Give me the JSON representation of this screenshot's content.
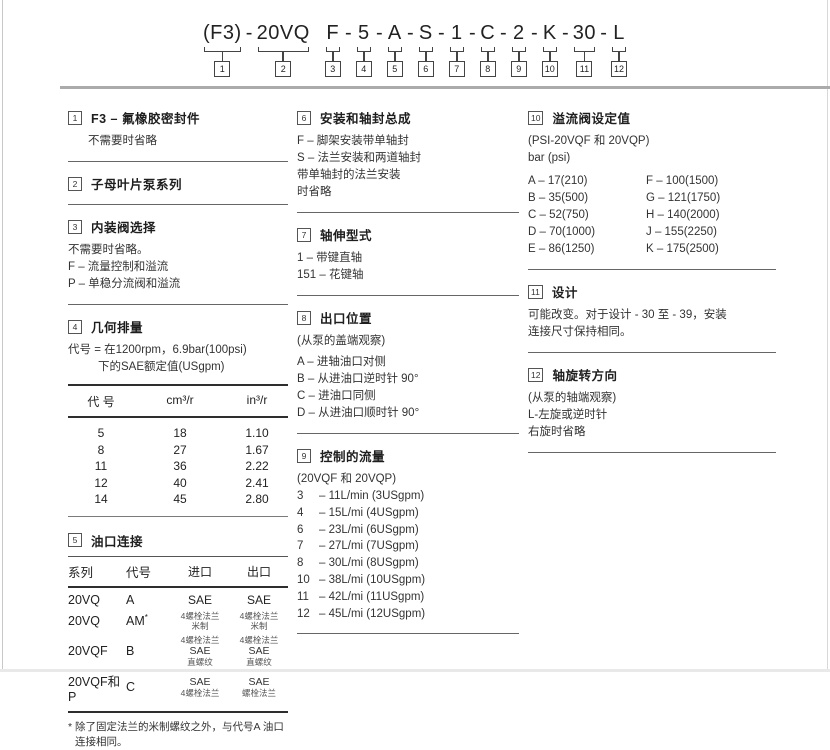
{
  "colors": {
    "text": "#2b2b2b",
    "rule_gray": "#ababab",
    "line_dark": "#444444"
  },
  "model_code": {
    "segments": [
      {
        "sep": "",
        "text": "(F3)",
        "num": "1"
      },
      {
        "sep": "-",
        "text": "20VQ",
        "num": "2"
      },
      {
        "sep": "",
        "text": "F",
        "num": "3"
      },
      {
        "sep": "-",
        "text": "5",
        "num": "4"
      },
      {
        "sep": "-",
        "text": "A",
        "num": "5"
      },
      {
        "sep": "-",
        "text": "S",
        "num": "6"
      },
      {
        "sep": "-",
        "text": "1",
        "num": "7"
      },
      {
        "sep": "-",
        "text": "C",
        "num": "8"
      },
      {
        "sep": "-",
        "text": "2",
        "num": "9"
      },
      {
        "sep": "-",
        "text": "K",
        "num": "10"
      },
      {
        "sep": "-",
        "text": "30",
        "num": "11"
      },
      {
        "sep": "-",
        "text": "L",
        "num": "12"
      }
    ]
  },
  "s1": {
    "num": "1",
    "title": "F3 – 氟橡胶密封件",
    "lines": [
      "不需要时省略"
    ]
  },
  "s2": {
    "num": "2",
    "title": "子母叶片泵系列"
  },
  "s3": {
    "num": "3",
    "title": "内装阀选择",
    "lines": [
      "不需要时省略。",
      "F – 流量控制和溢流",
      "P – 单稳分流阀和溢流"
    ]
  },
  "s4": {
    "num": "4",
    "title": "几何排量",
    "lines": [
      "代号 = 在1200rpm，6.9bar(100psi)",
      "下的SAE额定值(USgpm)"
    ],
    "table": {
      "headers": [
        "代 号",
        "cm³/r",
        "in³/r"
      ],
      "rows": [
        [
          "5",
          "18",
          "1.10"
        ],
        [
          "8",
          "27",
          "1.67"
        ],
        [
          "11",
          "36",
          "2.22"
        ],
        [
          "12",
          "40",
          "2.41"
        ],
        [
          "14",
          "45",
          "2.80"
        ]
      ]
    }
  },
  "s5": {
    "num": "5",
    "title": "油口连接",
    "table": {
      "headers": [
        "系列",
        "代号",
        "进口",
        "出口"
      ],
      "rows": [
        {
          "series": "20VQ",
          "code": "A",
          "code_sup": "",
          "inlet": [
            "SAE"
          ],
          "outlet": [
            "SAE"
          ]
        },
        {
          "series": "20VQ",
          "code": "AM",
          "code_sup": "*",
          "inlet": [
            "4螺栓法兰",
            "米制"
          ],
          "outlet": [
            "4螺栓法兰",
            "米制"
          ]
        },
        {
          "series": "20VQF",
          "code": "B",
          "code_sup": "",
          "inlet": [
            "4螺栓法兰",
            "SAE",
            "直螺纹"
          ],
          "outlet": [
            "4螺栓法兰",
            "SAE",
            "直螺纹"
          ]
        },
        {
          "series": "20VQF和P",
          "code": "C",
          "code_sup": "",
          "inlet": [
            "SAE",
            "4螺栓法兰"
          ],
          "outlet": [
            "SAE",
            "螺栓法兰"
          ]
        }
      ]
    },
    "footnote": [
      "* 除了固定法兰的米制螺纹之外，与代号A 油口",
      "连接相同。"
    ]
  },
  "s6": {
    "num": "6",
    "title": "安装和轴封总成",
    "lines": [
      "F – 脚架安装带单轴封",
      "S – 法兰安装和两道轴封",
      "带单轴封的法兰安装",
      "时省略"
    ]
  },
  "s7": {
    "num": "7",
    "title": "轴伸型式",
    "lines": [
      "1 – 带键直轴",
      "151 – 花键轴"
    ]
  },
  "s8": {
    "num": "8",
    "title": "出口位置",
    "lines": [
      "(从泵的盖端观察)",
      "A – 进轴油口对侧",
      "B – 从进油口逆时针 90°",
      "C – 进油口同侧",
      "D – 从进油口顺时针 90°"
    ]
  },
  "s9": {
    "num": "9",
    "title": "控制的流量",
    "subtitle": "(20VQF 和 20VQP)",
    "items": [
      {
        "n": "3",
        "t": "– 11L/min (3USgpm)"
      },
      {
        "n": "4",
        "t": "– 15L/mi (4USgpm)"
      },
      {
        "n": "6",
        "t": "– 23L/mi (6USgpm)"
      },
      {
        "n": "7",
        "t": "– 27L/mi (7USgpm)"
      },
      {
        "n": "8",
        "t": "– 30L/mi (8USgpm)"
      },
      {
        "n": "10",
        "t": "– 38L/mi (10USgpm)"
      },
      {
        "n": "11",
        "t": "– 42L/mi (11USgpm)"
      },
      {
        "n": "12",
        "t": "– 45L/mi (12USgpm)"
      }
    ]
  },
  "s10": {
    "num": "10",
    "title": "溢流阀设定值",
    "lines": [
      "(PSI-20VQF 和 20VQP)",
      "bar (psi)"
    ],
    "left": [
      "A – 17(210)",
      "B – 35(500)",
      "C – 52(750)",
      "D – 70(1000)",
      "E – 86(1250)"
    ],
    "right": [
      "F – 100(1500)",
      "G – 121(1750)",
      "H – 140(2000)",
      "J – 155(2250)",
      "K – 175(2500)"
    ]
  },
  "s11": {
    "num": "11",
    "title": "设计",
    "lines": [
      "可能改变。对于设计 - 30 至 - 39，安装",
      "连接尺寸保持相同。"
    ]
  },
  "s12": {
    "num": "12",
    "title": "轴旋转方向",
    "lines": [
      "(从泵的轴端观察)",
      "L-左旋或逆时针",
      "右旋时省略"
    ]
  }
}
